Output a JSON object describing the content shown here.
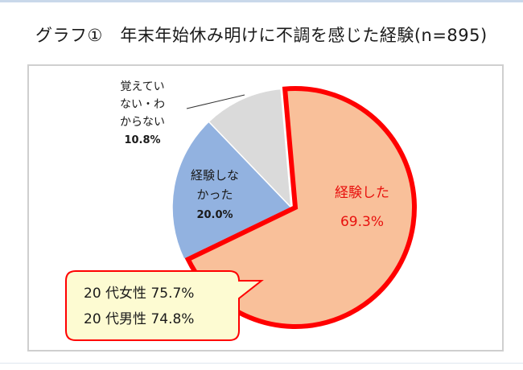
{
  "title": "グラフ①　年末年始休み明けに不調を感じた経験(n=895)",
  "chart_data": {
    "type": "pie",
    "slices": [
      {
        "label_lines": [
          "経験した"
        ],
        "value": 69.3,
        "value_text": "69.3%",
        "color": "#f9c09a",
        "stroke": "#ff0000",
        "label_color": "#e8110e"
      },
      {
        "label_lines": [
          "経験しな",
          "かった"
        ],
        "value": 20.0,
        "value_text": "20.0%",
        "color": "#92b2e0",
        "stroke": "#ffffff",
        "label_color": "#1a1a1a"
      },
      {
        "label_lines": [
          "覚えてい",
          "ない・わ",
          "からない"
        ],
        "value": 10.8,
        "value_text": "10.8%",
        "color": "#dadada",
        "stroke": "#ffffff",
        "label_color": "#1a1a1a"
      }
    ],
    "callout": {
      "lines": [
        "20 代女性 75.7%",
        "20 代男性 74.8%"
      ],
      "fill": "#fdfbd2",
      "border": "#ff0000"
    }
  }
}
